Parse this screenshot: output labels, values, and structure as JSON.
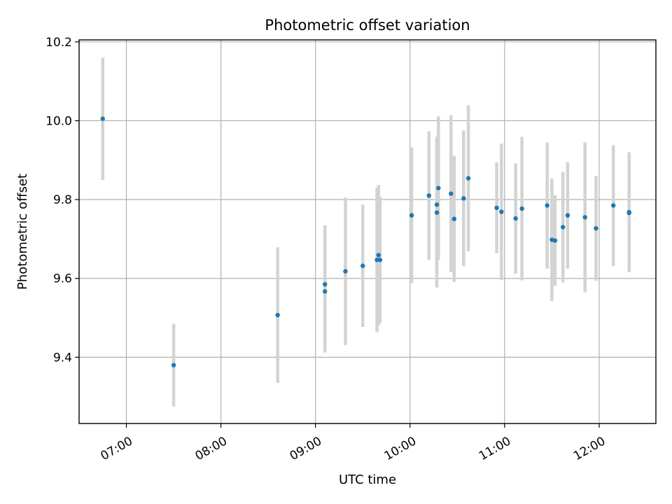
{
  "chart_data": {
    "type": "scatter",
    "title": "Photometric offset variation",
    "xlabel": "UTC time",
    "ylabel": "Photometric offset",
    "x_unit": "UTC time of day",
    "xlim": [
      "06:30",
      "12:36"
    ],
    "ylim": [
      9.232,
      10.205
    ],
    "x_ticks": [
      "07:00",
      "08:00",
      "09:00",
      "10:00",
      "11:00",
      "12:00"
    ],
    "y_ticks": [
      "9.4",
      "9.6",
      "9.8",
      "10.0",
      "10.2"
    ],
    "grid": true,
    "legend": "none",
    "colors": {
      "marker": "#1f77b4",
      "errorbar": "#d3d3d3",
      "grid": "#b0b0b0"
    },
    "points": [
      {
        "x": "06:45",
        "y": 10.005,
        "err": 0.155
      },
      {
        "x": "07:30",
        "y": 9.38,
        "err": 0.105
      },
      {
        "x": "08:36",
        "y": 9.507,
        "err": 0.172
      },
      {
        "x": "09:06",
        "y": 9.585,
        "err": 0.15
      },
      {
        "x": "09:06",
        "y": 9.567,
        "err": 0.155
      },
      {
        "x": "09:19",
        "y": 9.618,
        "err": 0.187
      },
      {
        "x": "09:30",
        "y": 9.632,
        "err": 0.155
      },
      {
        "x": "09:39",
        "y": 9.647,
        "err": 0.183
      },
      {
        "x": "09:40",
        "y": 9.659,
        "err": 0.178
      },
      {
        "x": "09:41",
        "y": 9.647,
        "err": 0.16
      },
      {
        "x": "10:01",
        "y": 9.76,
        "err": 0.172
      },
      {
        "x": "10:12",
        "y": 9.81,
        "err": 0.163
      },
      {
        "x": "10:17",
        "y": 9.787,
        "err": 0.173
      },
      {
        "x": "10:17",
        "y": 9.767,
        "err": 0.19
      },
      {
        "x": "10:18",
        "y": 9.829,
        "err": 0.182
      },
      {
        "x": "10:26",
        "y": 9.815,
        "err": 0.199
      },
      {
        "x": "10:28",
        "y": 9.751,
        "err": 0.16
      },
      {
        "x": "10:34",
        "y": 9.803,
        "err": 0.172
      },
      {
        "x": "10:37",
        "y": 9.854,
        "err": 0.185
      },
      {
        "x": "10:55",
        "y": 9.779,
        "err": 0.115
      },
      {
        "x": "10:58",
        "y": 9.769,
        "err": 0.173
      },
      {
        "x": "11:07",
        "y": 9.752,
        "err": 0.14
      },
      {
        "x": "11:11",
        "y": 9.777,
        "err": 0.182
      },
      {
        "x": "11:27",
        "y": 9.785,
        "err": 0.16
      },
      {
        "x": "11:30",
        "y": 9.698,
        "err": 0.155
      },
      {
        "x": "11:32",
        "y": 9.696,
        "err": 0.115
      },
      {
        "x": "11:37",
        "y": 9.73,
        "err": 0.14
      },
      {
        "x": "11:40",
        "y": 9.76,
        "err": 0.135
      },
      {
        "x": "11:51",
        "y": 9.755,
        "err": 0.19
      },
      {
        "x": "11:58",
        "y": 9.727,
        "err": 0.133
      },
      {
        "x": "12:09",
        "y": 9.785,
        "err": 0.153
      },
      {
        "x": "12:19",
        "y": 9.768,
        "err": 0.152
      },
      {
        "x": "12:19",
        "y": 9.766,
        "err": 0.15
      }
    ]
  }
}
